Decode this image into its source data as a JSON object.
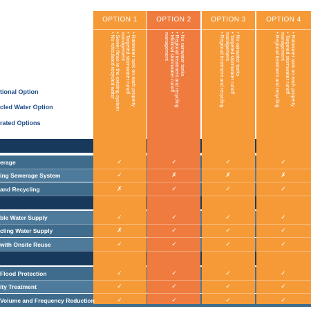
{
  "column_headers": [
    "OPTION 1",
    "OPTION 2",
    "OPTION 3",
    "OPTION 4"
  ],
  "column_bullets": [
    [
      "• Rainwater tank on each property",
      "• Targeted stormwater runoff",
      "  management",
      "• Sewer flows to the existing system",
      "• No reticulated recycled water"
    ],
    [
      "• No rainwater tanks",
      "• Regional treatment and recycling",
      "• Minimal stormwater runoff",
      "  management"
    ],
    [
      "• No rainwater tanks",
      "• Targeted stormwater runoff",
      "  management",
      "• Regional treatment and recycling"
    ],
    [
      "• Rainwater tank on each property",
      "• Targeted stormwater runoff",
      "  management",
      "• Regional treatment and recycling"
    ]
  ],
  "legend_labels": [
    "tional Option",
    "cled Water Option",
    "rated Options"
  ],
  "rows": [
    {
      "label": "erage",
      "marks": [
        "✓",
        "✓",
        "✓",
        "✓"
      ]
    },
    {
      "label": "ing Sewerage System",
      "marks": [
        "✓",
        "✗",
        "✗",
        "✗"
      ]
    },
    {
      "label": "and Recycling",
      "marks": [
        "✗",
        "✓",
        "✓",
        "✓"
      ]
    },
    {
      "label": "ble Water Supply",
      "marks": [
        "✓",
        "✓",
        "✓",
        "✓"
      ]
    },
    {
      "label": "cling Water Supply",
      "marks": [
        "✗",
        "✓",
        "✓",
        "✓"
      ]
    },
    {
      "label": " with Onsite Reuse",
      "marks": [
        "✓",
        "✓",
        "✓",
        "✓"
      ]
    },
    {
      "label": " Flood Protection",
      "marks": [
        "✓",
        "✓",
        "✓",
        "✓"
      ]
    },
    {
      "label": "ity Treatment",
      "marks": [
        "✓",
        "✓",
        "✓",
        "✓"
      ]
    },
    {
      "label": "Volume and Frequency Reduction",
      "marks": [
        "✓",
        "✓",
        "✓",
        "✓"
      ]
    }
  ]
}
